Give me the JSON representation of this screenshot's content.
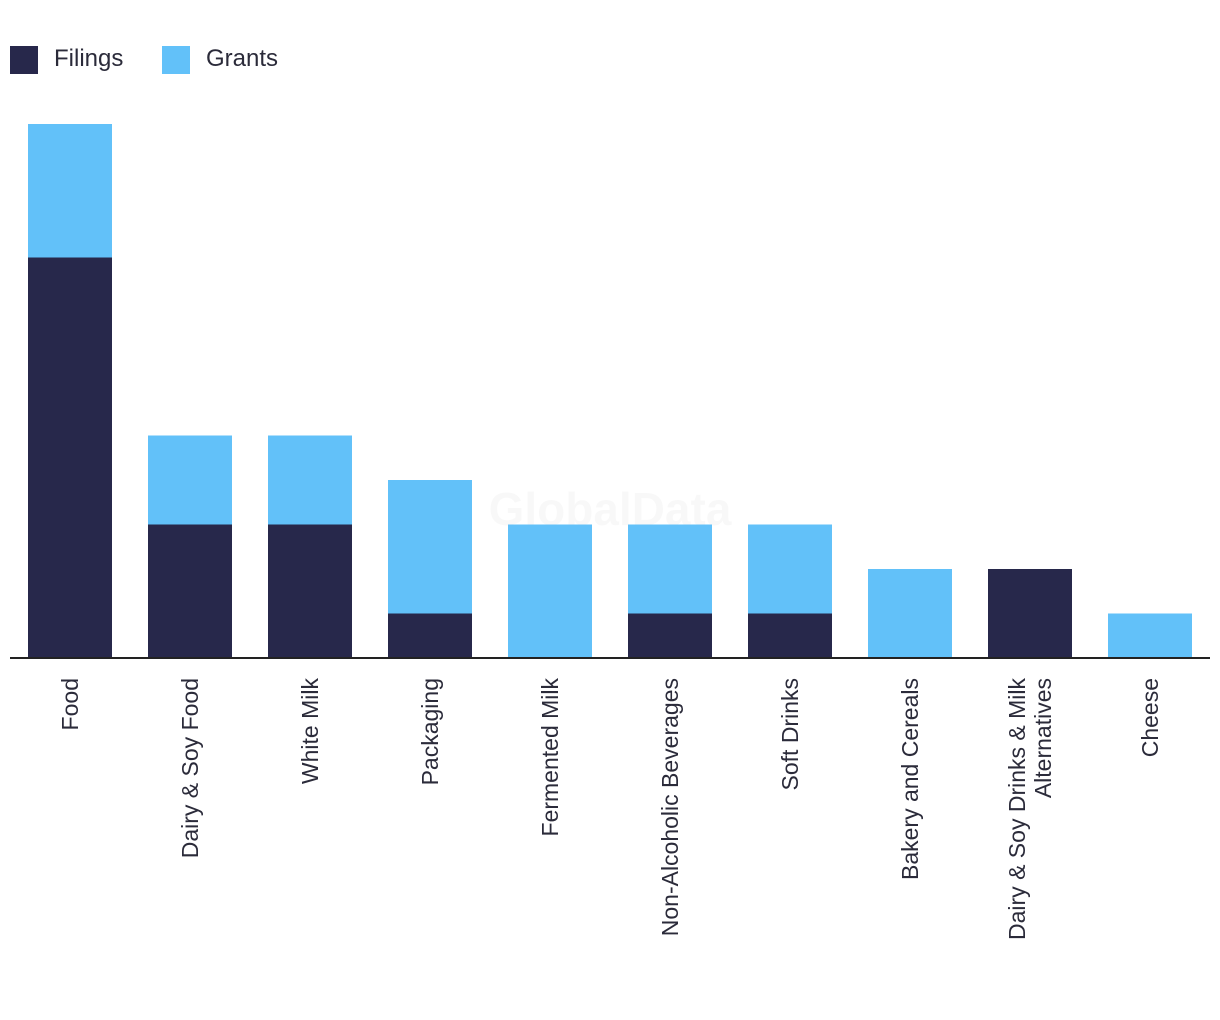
{
  "chart_data": {
    "type": "bar",
    "stacked": true,
    "title": "",
    "xlabel": "",
    "ylabel": "",
    "ylim": [
      0,
      12
    ],
    "grid": false,
    "legend": "top-left",
    "categories": [
      "Food",
      "Dairy & Soy Food",
      "White Milk",
      "Packaging",
      "Fermented Milk",
      "Non-Alcoholic Beverages",
      "Soft Drinks",
      "Bakery and Cereals",
      "Dairy & Soy Drinks & Milk Alternatives",
      "Cheese"
    ],
    "series": [
      {
        "name": "Filings",
        "color": "#27284b",
        "values": [
          9,
          3,
          3,
          1,
          0,
          1,
          1,
          0,
          2,
          0
        ]
      },
      {
        "name": "Grants",
        "color": "#62c1f9",
        "values": [
          3,
          2,
          2,
          3,
          3,
          2,
          2,
          2,
          0,
          1
        ]
      }
    ]
  },
  "watermark": "GlobalData"
}
